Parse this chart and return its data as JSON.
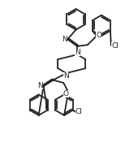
{
  "bg_color": "#ffffff",
  "line_color": "#222222",
  "lw": 1.3,
  "figsize": [
    1.7,
    1.92
  ],
  "dpi": 100,
  "xlim": [
    0,
    10
  ],
  "ylim": [
    0,
    11.3
  ]
}
